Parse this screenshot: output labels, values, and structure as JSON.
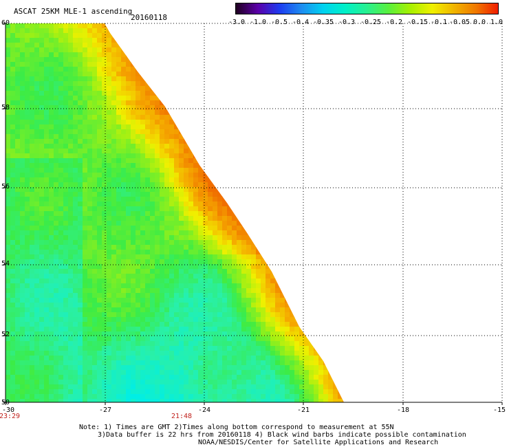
{
  "header": {
    "title": "ASCAT 25KM MLE-1 ascending",
    "date": "20160118"
  },
  "colorbar": {
    "labels": [
      "-3.0",
      "-1.0",
      "-0.5",
      "-0.4",
      "-0.35",
      "-0.3",
      "-0.25",
      "-0.2",
      "-0.15",
      "-0.1",
      "-0.05",
      "0.0",
      "1.0"
    ],
    "colors": [
      "#200020",
      "#5a00a8",
      "#1e3cf0",
      "#1e8cf0",
      "#00d2f0",
      "#00f0c8",
      "#28f090",
      "#5af03c",
      "#a8f000",
      "#f0f000",
      "#f0b400",
      "#f07800",
      "#f01e00"
    ]
  },
  "axes": {
    "lat_ticks": [
      "60",
      "58",
      "56",
      "54",
      "52",
      "50"
    ],
    "lon_ticks": [
      "-30",
      "-27",
      "-24",
      "-21",
      "-18",
      "-15"
    ],
    "time_labels": [
      "23:29",
      "21:48"
    ]
  },
  "notes": [
    "Note: 1) Times are GMT 2)Times along bottom correspond to measurement at 55N",
    "3)Data buffer is 22 hrs from 20160118 4) Black wind barbs indicate possible contamination",
    "NOAA/NESDIS/Center for Satellite Applications and Research"
  ]
}
